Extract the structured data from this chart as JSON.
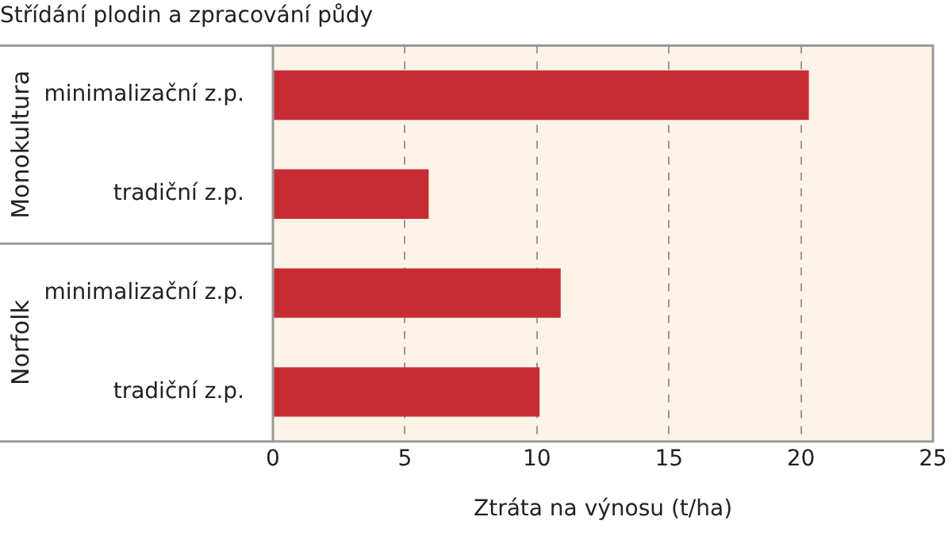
{
  "chart_data": {
    "type": "bar",
    "orientation": "horizontal",
    "title": "Střídání plodin a zpracování půdy",
    "xlabel": "Ztráta na výnosu (t/ha)",
    "categories": [
      "minimalizační z.p.",
      "tradiční z.p.",
      "minimalizační z.p.",
      "tradiční z.p."
    ],
    "values": [
      20.3,
      5.9,
      10.9,
      10.1
    ],
    "color": "#c72c35",
    "xlim": [
      0,
      25
    ],
    "xticks": [
      0,
      5,
      10,
      15,
      20,
      25
    ],
    "grid": "x",
    "legend": false,
    "annotations": [
      "Monokultura",
      "Norfolk"
    ]
  }
}
